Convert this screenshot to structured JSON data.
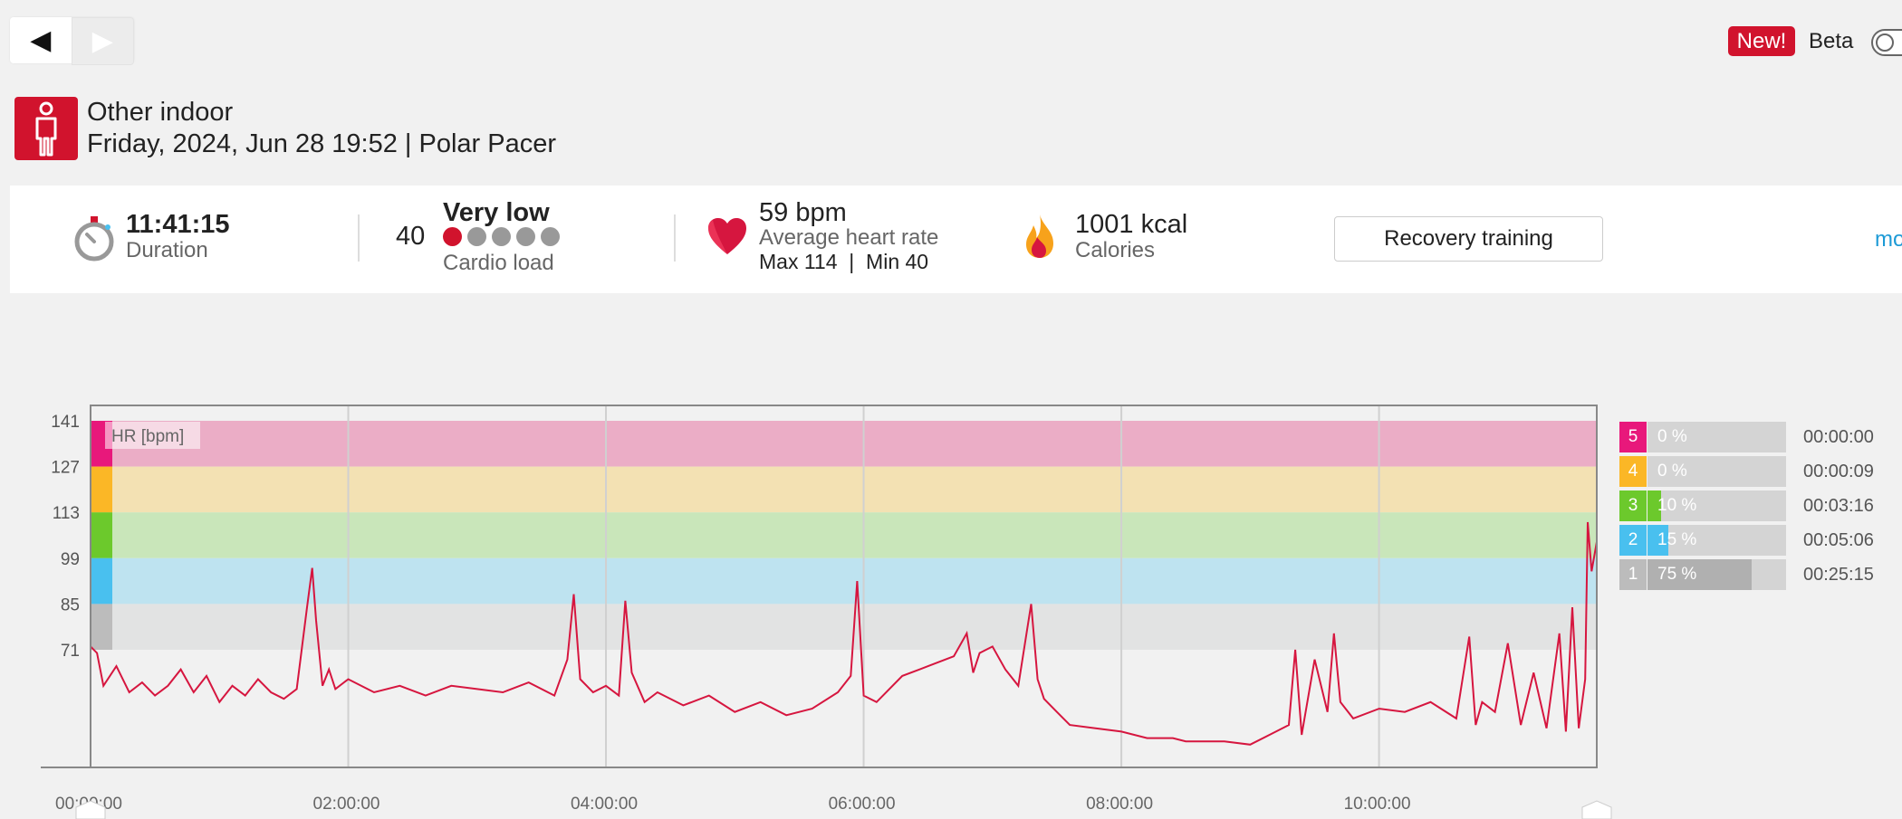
{
  "nav": {
    "prev_icon": "◀",
    "next_icon": "▶"
  },
  "topright": {
    "new_badge": "New!",
    "beta_label": "Beta"
  },
  "header": {
    "sport_icon": "person-standing-icon",
    "sport_name": "Other indoor",
    "date_device": "Friday, 2024, Jun 28 19:52 | Polar Pacer"
  },
  "summary": {
    "duration_value": "11:41:15",
    "duration_label": "Duration",
    "cardio_number": "40",
    "cardio_level": "Very low",
    "cardio_label": "Cardio load",
    "cardio_dots_filled": 1,
    "cardio_dots_total": 5,
    "hr_value": "59 bpm",
    "hr_label": "Average heart rate",
    "hr_maxmin": "Max 114  |  Min 40",
    "calories_value": "1001 kcal",
    "calories_label": "Calories",
    "training_benefit": "Recovery training",
    "more_link": "mo"
  },
  "colors": {
    "brand_red": "#d1132d",
    "hr_line": "#d6163f",
    "zone5": "#e8187b",
    "zone4": "#fbb726",
    "zone3": "#6cc92c",
    "zone2": "#49c0ef",
    "zone1": "#bcbcbc",
    "link_blue": "#1c9ad6"
  },
  "zones": [
    {
      "zone": "5",
      "percent": "0 %",
      "time": "00:00:00",
      "fill": 0
    },
    {
      "zone": "4",
      "percent": "0 %",
      "time": "00:00:09",
      "fill": 0
    },
    {
      "zone": "3",
      "percent": "10 %",
      "time": "00:03:16",
      "fill": 0.1
    },
    {
      "zone": "2",
      "percent": "15 %",
      "time": "00:05:06",
      "fill": 0.15
    },
    {
      "zone": "1",
      "percent": "75 %",
      "time": "00:25:15",
      "fill": 0.75
    }
  ],
  "chart_data": {
    "type": "line",
    "series_label": "HR [bpm]",
    "y_ticks": [
      "141",
      "127",
      "113",
      "99",
      "85",
      "71"
    ],
    "x_ticks": [
      "00:00:00",
      "02:00:00",
      "04:00:00",
      "06:00:00",
      "08:00:00",
      "10:00:00"
    ],
    "ylim": [
      30,
      145
    ],
    "xlim_hours": [
      0,
      11.69
    ],
    "zone_bands": [
      {
        "zone": "5",
        "from": 127,
        "to": 141
      },
      {
        "zone": "4",
        "from": 113,
        "to": 127
      },
      {
        "zone": "3",
        "from": 99,
        "to": 113
      },
      {
        "zone": "2",
        "from": 85,
        "to": 99
      },
      {
        "zone": "1",
        "from": 71,
        "to": 85
      }
    ],
    "series": [
      {
        "name": "HR",
        "x_hours": [
          0,
          0.05,
          0.1,
          0.2,
          0.3,
          0.4,
          0.5,
          0.6,
          0.7,
          0.8,
          0.9,
          1.0,
          1.1,
          1.2,
          1.3,
          1.4,
          1.5,
          1.6,
          1.68,
          1.72,
          1.75,
          1.8,
          1.85,
          1.9,
          2.0,
          2.2,
          2.4,
          2.6,
          2.8,
          3.0,
          3.2,
          3.4,
          3.6,
          3.7,
          3.75,
          3.8,
          3.9,
          4.0,
          4.1,
          4.15,
          4.2,
          4.3,
          4.4,
          4.6,
          4.8,
          5.0,
          5.2,
          5.4,
          5.6,
          5.8,
          5.9,
          5.95,
          6.0,
          6.1,
          6.3,
          6.5,
          6.7,
          6.8,
          6.85,
          6.9,
          7.0,
          7.1,
          7.2,
          7.3,
          7.35,
          7.4,
          7.5,
          7.6,
          7.8,
          8.0,
          8.2,
          8.4,
          8.5,
          8.6,
          8.8,
          9.0,
          9.2,
          9.3,
          9.35,
          9.4,
          9.5,
          9.6,
          9.65,
          9.7,
          9.8,
          10.0,
          10.2,
          10.4,
          10.6,
          10.7,
          10.75,
          10.8,
          10.9,
          11.0,
          11.1,
          11.2,
          11.3,
          11.4,
          11.45,
          11.5,
          11.55,
          11.6,
          11.62,
          11.65,
          11.69
        ],
        "values": [
          72,
          70,
          60,
          66,
          58,
          61,
          57,
          60,
          65,
          58,
          63,
          55,
          60,
          57,
          62,
          58,
          56,
          59,
          84,
          96,
          80,
          60,
          65,
          59,
          62,
          58,
          60,
          57,
          60,
          59,
          58,
          61,
          57,
          68,
          88,
          62,
          58,
          60,
          57,
          86,
          64,
          55,
          58,
          54,
          57,
          52,
          55,
          51,
          53,
          58,
          63,
          92,
          57,
          55,
          63,
          66,
          69,
          76,
          64,
          70,
          72,
          65,
          60,
          85,
          62,
          56,
          52,
          48,
          47,
          46,
          44,
          44,
          43,
          43,
          43,
          42,
          46,
          48,
          71,
          45,
          68,
          52,
          76,
          55,
          50,
          53,
          52,
          55,
          50,
          75,
          48,
          55,
          52,
          73,
          48,
          64,
          47,
          76,
          46,
          84,
          47,
          62,
          110,
          95,
          104
        ]
      }
    ]
  }
}
